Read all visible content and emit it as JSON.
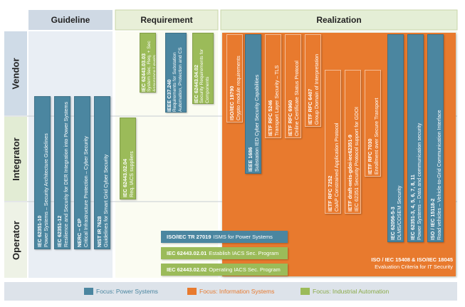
{
  "columns": {
    "guideline": "Guideline",
    "requirement": "Requirement",
    "realization": "Realization"
  },
  "rows": {
    "vendor": "Vendor",
    "integrator": "Integrator",
    "operator": "Operator"
  },
  "colors": {
    "power_systems": "#4b86a0",
    "information_systems": "#e87a2e",
    "industrial_automation": "#9bbb59"
  },
  "guideline_bars": [
    {
      "id": "IEC 62351-10",
      "desc": "Power Systems – Security Architecture Guidelines"
    },
    {
      "id": "IEC 62351-12",
      "desc": "Resilience and Security for DER Integration into Power Systems"
    },
    {
      "id": "NERC – CIP",
      "desc": "Critical Infrastructure Protection – Cyber Security"
    },
    {
      "id": "NIST IR 7628",
      "desc": "Guidelines for Smart Grid Cyber Security"
    }
  ],
  "requirement_bars": [
    {
      "id": "IEC 62443.02.04",
      "desc": "Req. IACS suppliers"
    },
    {
      "id": "IEC 62443.03.03",
      "desc": "System Sec. Req. + Sec Assurance Levels"
    },
    {
      "id": "IEEE C37.240",
      "desc": "Requirements for Substation Automation, Protection and CS"
    },
    {
      "id": "IEC 62443.04.02",
      "desc": "Security Requirements for Components"
    }
  ],
  "realization_bars": [
    {
      "id": "ISO/IEC 19790",
      "desc": "Crypto module requirements"
    },
    {
      "id": "IEEE 1686",
      "desc": "Substation IED Cyber Security Capabilities"
    },
    {
      "id": "IETF RFC 5246",
      "desc": "Transport Layer Security – TLS"
    },
    {
      "id": "IETF RFC 6960",
      "desc": "Online Certificate Status Protocol"
    },
    {
      "id": "IETF RFC 6407",
      "desc": "Group Domain of Interpretation"
    },
    {
      "id": "IETF RFC 7252",
      "desc": "CoAP Constrained Application Protocol"
    },
    {
      "id": "IETF draft-weis-gdoi-iec62351-9",
      "desc": "IEC 62351 Security Protocol support for GDOI"
    },
    {
      "id": "IETF RFC 7030",
      "desc": "Enrollment over Secure Transport"
    },
    {
      "id": "IEC 62056-5-3",
      "desc": "DLMS/COSEM Security"
    },
    {
      "id": "IEC 62351-3, 4, 5, 6, 7, 8, 11",
      "desc": "Power Systems – Data and communication security"
    },
    {
      "id": "ISO / IEC 15118-2",
      "desc": "Road vehicles – Vehicle-to-Grid Communication Interface"
    }
  ],
  "operator_bars": [
    {
      "id": "ISO/IEC TR 27019",
      "desc": "ISMS for Power Systems"
    },
    {
      "id": "IEC 62443.02.01",
      "desc": "Establish IACS Sec. Program"
    },
    {
      "id": "IEC 62443.02.02",
      "desc": "Operating IACS Sec. Program"
    }
  ],
  "iso15408": {
    "line1": "ISO / IEC 15408 & ISO/IEC 18045",
    "line2": "Evaluation Criteria for IT Security"
  },
  "legend": [
    {
      "label": "Focus: Power Systems",
      "color": "#4b86a0"
    },
    {
      "label": "Focus: Information Systems",
      "color": "#e87a2e"
    },
    {
      "label": "Focus: Industrial Automation",
      "color": "#9bbb59"
    }
  ]
}
